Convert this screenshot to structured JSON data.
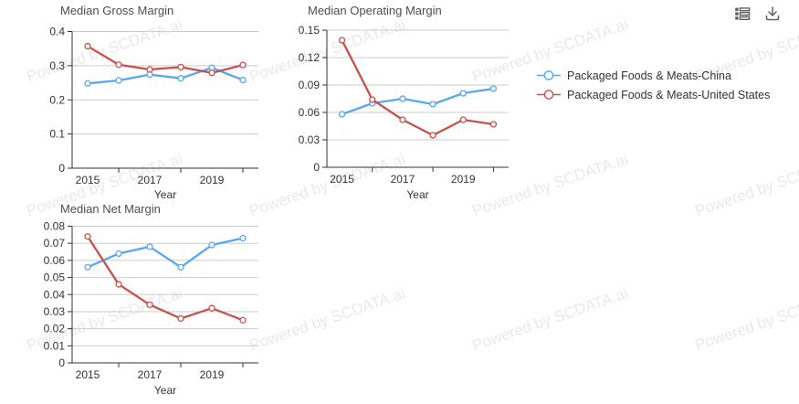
{
  "watermark": {
    "text": "Powered by SCDATA.ai",
    "color": "#e9e9e9"
  },
  "toolbar": {
    "icons": [
      {
        "name": "data-view-icon",
        "color": "#606060"
      },
      {
        "name": "download-icon",
        "color": "#606060"
      }
    ]
  },
  "legend": {
    "position": "right",
    "items": [
      {
        "label": "Packaged Foods & Meats-China",
        "color": "#57a7f0"
      },
      {
        "label": "Packaged Foods & Meats-United States",
        "color": "#c8504b"
      }
    ]
  },
  "chart_data": [
    {
      "type": "line",
      "title": "Median Gross Margin",
      "xlabel": "Year",
      "ylabel": "",
      "categories": [
        "2015",
        "2016",
        "2017",
        "2018",
        "2019",
        "2020"
      ],
      "xtick_labels_shown": [
        "2015",
        "2017",
        "2019"
      ],
      "ylim": [
        0,
        0.4
      ],
      "yticks": [
        "0",
        "0.1",
        "0.2",
        "0.3",
        "0.4"
      ],
      "grid": true,
      "marker": "hollow-circle",
      "series": [
        {
          "name": "Packaged Foods & Meats-China",
          "color": "#57a7f0",
          "values": [
            0.248,
            0.257,
            0.274,
            0.263,
            0.294,
            0.258
          ]
        },
        {
          "name": "Packaged Foods & Meats-United States",
          "color": "#c8504b",
          "values": [
            0.357,
            0.303,
            0.289,
            0.296,
            0.279,
            0.302
          ]
        }
      ]
    },
    {
      "type": "line",
      "title": "Median Operating Margin",
      "xlabel": "Year",
      "ylabel": "",
      "categories": [
        "2015",
        "2016",
        "2017",
        "2018",
        "2019",
        "2020"
      ],
      "xtick_labels_shown": [
        "2015",
        "2017",
        "2019"
      ],
      "ylim": [
        0,
        0.15
      ],
      "yticks": [
        "0",
        "0.03",
        "0.06",
        "0.09",
        "0.12",
        "0.15"
      ],
      "grid": true,
      "marker": "hollow-circle",
      "series": [
        {
          "name": "Packaged Foods & Meats-China",
          "color": "#57a7f0",
          "values": [
            0.058,
            0.07,
            0.075,
            0.069,
            0.081,
            0.086
          ]
        },
        {
          "name": "Packaged Foods & Meats-United States",
          "color": "#c8504b",
          "values": [
            0.139,
            0.074,
            0.052,
            0.035,
            0.052,
            0.047
          ]
        }
      ]
    },
    {
      "type": "line",
      "title": "Median Net Margin",
      "xlabel": "Year",
      "ylabel": "",
      "categories": [
        "2015",
        "2016",
        "2017",
        "2018",
        "2019",
        "2020"
      ],
      "xtick_labels_shown": [
        "2015",
        "2017",
        "2019"
      ],
      "ylim": [
        0,
        0.08
      ],
      "yticks": [
        "0",
        "0.01",
        "0.02",
        "0.03",
        "0.04",
        "0.05",
        "0.06",
        "0.07",
        "0.08"
      ],
      "grid": true,
      "marker": "hollow-circle",
      "series": [
        {
          "name": "Packaged Foods & Meats-China",
          "color": "#57a7f0",
          "values": [
            0.056,
            0.064,
            0.068,
            0.056,
            0.069,
            0.073
          ]
        },
        {
          "name": "Packaged Foods & Meats-United States",
          "color": "#c8504b",
          "values": [
            0.074,
            0.046,
            0.034,
            0.026,
            0.032,
            0.025
          ]
        }
      ]
    }
  ]
}
